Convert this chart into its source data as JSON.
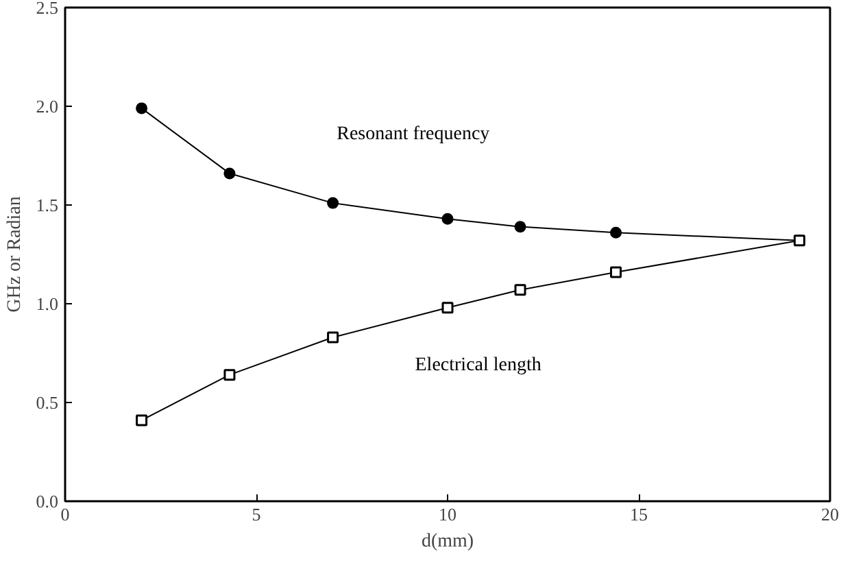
{
  "chart_data": {
    "type": "line",
    "xlabel": "d(mm)",
    "ylabel": "GHz or Radian",
    "xlim": [
      0,
      20
    ],
    "ylim": [
      0,
      2.5
    ],
    "xticks": [
      0,
      5,
      10,
      15,
      20
    ],
    "yticks": [
      {
        "value": 0,
        "label": "0.0"
      },
      {
        "value": 0.5,
        "label": "0.5"
      },
      {
        "value": 1,
        "label": "1.0"
      },
      {
        "value": 1.5,
        "label": "1.5"
      },
      {
        "value": 2,
        "label": "2.0"
      },
      {
        "value": 2.5,
        "label": "2.5"
      }
    ],
    "grid": false,
    "legend": false,
    "line_style": "solid",
    "x": [
      2.0,
      4.3,
      7.0,
      10.0,
      11.9,
      14.4,
      19.2
    ],
    "series": [
      {
        "name": "Resonant frequency",
        "color": "#000000",
        "marker": "circle",
        "values": [
          1.99,
          1.66,
          1.51,
          1.43,
          1.39,
          1.36,
          1.32
        ]
      },
      {
        "name": "Electrical length",
        "color": "#000000",
        "marker": "square",
        "values": [
          0.41,
          0.64,
          0.83,
          0.98,
          1.07,
          1.16,
          1.32
        ]
      }
    ]
  }
}
